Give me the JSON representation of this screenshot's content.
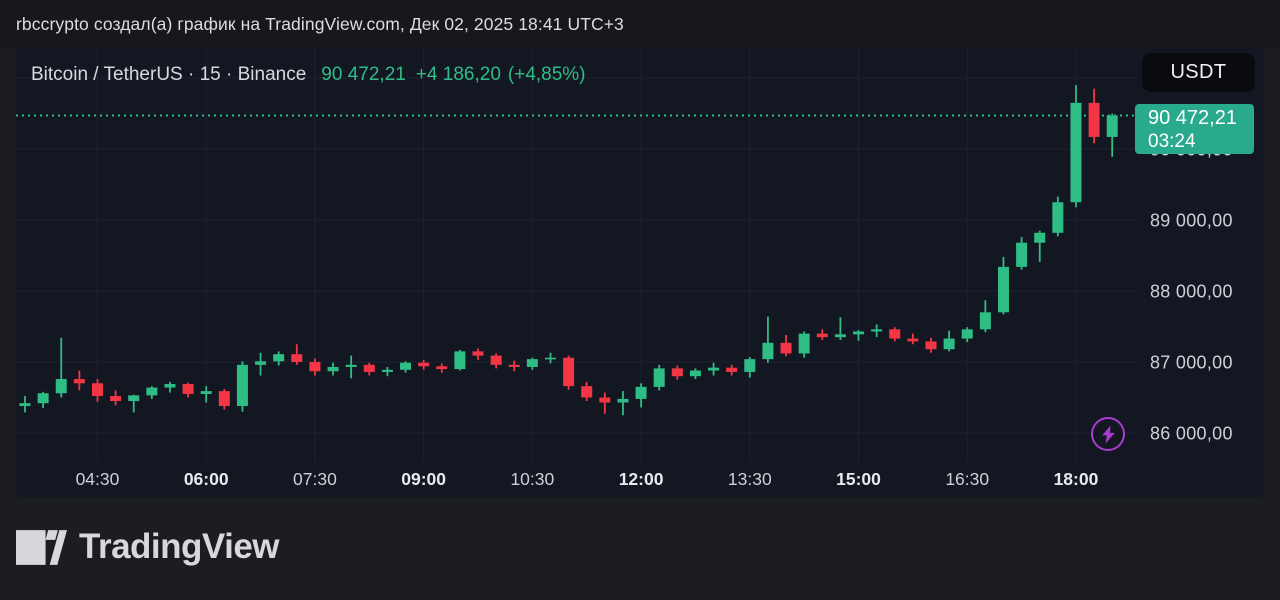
{
  "header": {
    "attribution": "rbccrypto создал(а) график на TradingView.com, Дек 02, 2025 18:41 UTC+3"
  },
  "symbol_bar": {
    "title": "Bitcoin / TetherUS · 15 · Binance",
    "price": "90 472,21",
    "change": "+4 186,20",
    "change_pct": "(+4,85%)"
  },
  "currency_button": {
    "label": "USDT"
  },
  "price_tag": {
    "price": "90 472,21",
    "countdown": "03:24"
  },
  "footer": {
    "brand": "TradingView"
  },
  "colors": {
    "up": "#2ebd85",
    "down": "#f23645",
    "last_price_line": "#2ebd85",
    "tag_bg": "#2aaa8c",
    "accent_purple": "#ab3bd1",
    "grid": "#1d2230",
    "axis_text": "#ccd0d7",
    "axis_text_bold": "#e7e9ec",
    "panel_bg": "#131722",
    "page_bg": "#1b1c20"
  },
  "chart_data": {
    "type": "candlestick",
    "title": "Bitcoin / TetherUS · 15 · Binance",
    "interval_minutes": 15,
    "last_price": 90472.21,
    "last_candle_countdown": "03:24",
    "ylim": [
      85620,
      91420
    ],
    "grid": true,
    "price_gridlines": [
      86000,
      87000,
      88000,
      89000,
      90000,
      91000
    ],
    "price_labels": [
      {
        "value": 86000,
        "label": "86 000,00"
      },
      {
        "value": 87000,
        "label": "87 000,00"
      },
      {
        "value": 88000,
        "label": "88 000,00"
      },
      {
        "value": 89000,
        "label": "89 000,00"
      },
      {
        "value": 90000,
        "label": "90 000,00"
      }
    ],
    "time_labels": [
      {
        "label": "04:30",
        "candle_index": 4,
        "bold": false
      },
      {
        "label": "06:00",
        "candle_index": 10,
        "bold": true
      },
      {
        "label": "07:30",
        "candle_index": 16,
        "bold": false
      },
      {
        "label": "09:00",
        "candle_index": 22,
        "bold": true
      },
      {
        "label": "10:30",
        "candle_index": 28,
        "bold": false
      },
      {
        "label": "12:00",
        "candle_index": 34,
        "bold": true
      },
      {
        "label": "13:30",
        "candle_index": 40,
        "bold": false
      },
      {
        "label": "15:00",
        "candle_index": 46,
        "bold": true
      },
      {
        "label": "16:30",
        "candle_index": 52,
        "bold": false
      },
      {
        "label": "18:00",
        "candle_index": 58,
        "bold": true
      }
    ],
    "candles_columns": [
      "time",
      "open",
      "high",
      "low",
      "close"
    ],
    "candles": [
      [
        "03:30",
        86380,
        86520,
        86290,
        86420
      ],
      [
        "03:45",
        86420,
        86580,
        86350,
        86560
      ],
      [
        "04:00",
        86560,
        87340,
        86500,
        86760
      ],
      [
        "04:15",
        86760,
        86880,
        86600,
        86700
      ],
      [
        "04:30",
        86700,
        86760,
        86440,
        86520
      ],
      [
        "04:45",
        86520,
        86600,
        86390,
        86450
      ],
      [
        "05:00",
        86450,
        86540,
        86290,
        86530
      ],
      [
        "05:15",
        86530,
        86660,
        86480,
        86640
      ],
      [
        "05:30",
        86640,
        86720,
        86570,
        86690
      ],
      [
        "05:45",
        86690,
        86710,
        86500,
        86550
      ],
      [
        "06:00",
        86550,
        86660,
        86430,
        86590
      ],
      [
        "06:15",
        86590,
        86620,
        86330,
        86380
      ],
      [
        "06:30",
        86380,
        87010,
        86300,
        86960
      ],
      [
        "06:45",
        86960,
        87130,
        86810,
        87010
      ],
      [
        "07:00",
        87010,
        87150,
        86950,
        87110
      ],
      [
        "07:15",
        87110,
        87250,
        86960,
        87000
      ],
      [
        "07:30",
        87000,
        87050,
        86810,
        86870
      ],
      [
        "07:45",
        86870,
        86990,
        86810,
        86930
      ],
      [
        "08:00",
        86930,
        87090,
        86770,
        86960
      ],
      [
        "08:15",
        86960,
        86990,
        86810,
        86860
      ],
      [
        "08:30",
        86860,
        86930,
        86800,
        86890
      ],
      [
        "08:45",
        86890,
        87010,
        86850,
        86990
      ],
      [
        "09:00",
        86990,
        87030,
        86890,
        86940
      ],
      [
        "09:15",
        86940,
        86980,
        86850,
        86900
      ],
      [
        "09:30",
        86900,
        87170,
        86880,
        87150
      ],
      [
        "09:45",
        87150,
        87190,
        87030,
        87090
      ],
      [
        "10:00",
        87090,
        87120,
        86910,
        86960
      ],
      [
        "10:15",
        86960,
        87020,
        86870,
        86930
      ],
      [
        "10:30",
        86930,
        87060,
        86890,
        87040
      ],
      [
        "10:45",
        87040,
        87130,
        86980,
        87060
      ],
      [
        "11:00",
        87060,
        87090,
        86610,
        86660
      ],
      [
        "11:15",
        86660,
        86720,
        86450,
        86500
      ],
      [
        "11:30",
        86500,
        86570,
        86270,
        86430
      ],
      [
        "11:45",
        86430,
        86590,
        86250,
        86480
      ],
      [
        "12:00",
        86480,
        86700,
        86360,
        86650
      ],
      [
        "12:15",
        86650,
        86960,
        86600,
        86910
      ],
      [
        "12:30",
        86910,
        86950,
        86750,
        86800
      ],
      [
        "12:45",
        86800,
        86910,
        86760,
        86880
      ],
      [
        "13:00",
        86880,
        86990,
        86810,
        86920
      ],
      [
        "13:15",
        86920,
        86960,
        86810,
        86860
      ],
      [
        "13:30",
        86860,
        87070,
        86780,
        87040
      ],
      [
        "13:45",
        87040,
        87640,
        86990,
        87270
      ],
      [
        "14:00",
        87270,
        87380,
        87080,
        87120
      ],
      [
        "14:15",
        87120,
        87430,
        87060,
        87400
      ],
      [
        "14:30",
        87400,
        87460,
        87310,
        87350
      ],
      [
        "14:45",
        87350,
        87630,
        87310,
        87390
      ],
      [
        "15:00",
        87390,
        87450,
        87300,
        87430
      ],
      [
        "15:15",
        87430,
        87530,
        87350,
        87460
      ],
      [
        "15:30",
        87460,
        87490,
        87290,
        87330
      ],
      [
        "15:45",
        87330,
        87400,
        87250,
        87290
      ],
      [
        "16:00",
        87290,
        87340,
        87130,
        87180
      ],
      [
        "16:15",
        87180,
        87440,
        87150,
        87330
      ],
      [
        "16:30",
        87330,
        87490,
        87280,
        87460
      ],
      [
        "16:45",
        87460,
        87870,
        87420,
        87700
      ],
      [
        "17:00",
        87700,
        88480,
        87670,
        88340
      ],
      [
        "17:15",
        88340,
        88760,
        88300,
        88680
      ],
      [
        "17:30",
        88680,
        88850,
        88410,
        88820
      ],
      [
        "17:45",
        88820,
        89330,
        88770,
        89250
      ],
      [
        "18:00",
        89250,
        90900,
        89180,
        90650
      ],
      [
        "18:15",
        90650,
        90850,
        90080,
        90170
      ],
      [
        "18:30",
        90170,
        90500,
        89890,
        90472.21
      ]
    ]
  }
}
